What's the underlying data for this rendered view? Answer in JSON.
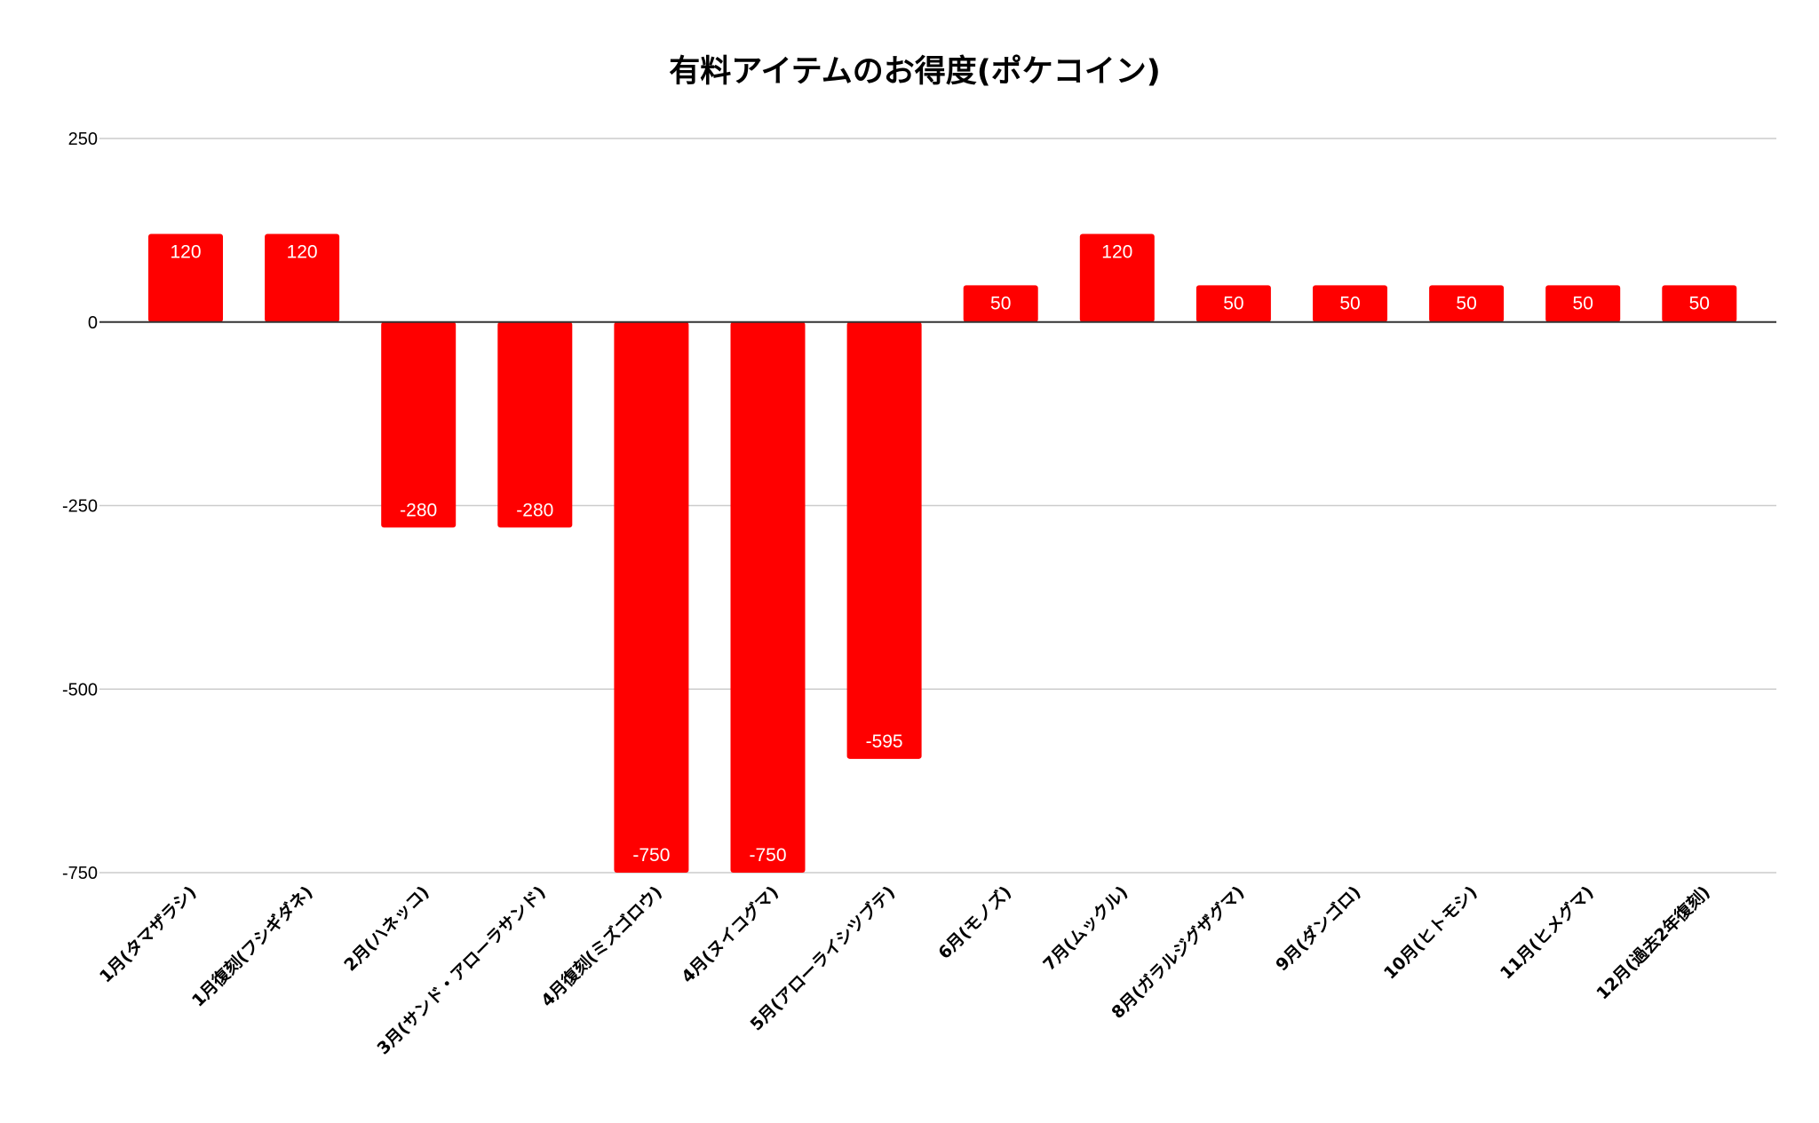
{
  "chart_data": {
    "type": "bar",
    "title": "有料アイテムのお得度(ポケコイン)",
    "xlabel": "",
    "ylabel": "",
    "ylim": [
      -750,
      250
    ],
    "yticks": [
      250,
      0,
      -250,
      -500,
      -750
    ],
    "ytick_labels": [
      "250",
      "0",
      "-250",
      "-500",
      "-750"
    ],
    "grid": true,
    "legend": "none",
    "categories": [
      "1月(タマザラシ)",
      "1月復刻(フシギダネ)",
      "2月(ハネッコ)",
      "3月(サンド・アローラサンド)",
      "4月復刻(ミズゴロウ)",
      "4月(ヌイコグマ)",
      "5月(アローライシツブテ)",
      "6月(モノズ)",
      "7月(ムックル)",
      "8月(ガラルジグザグマ)",
      "9月(ダンゴロ)",
      "10月(ヒトモシ)",
      "11月(ヒメグマ)",
      "12月(過去2年復刻)"
    ],
    "values": [
      120,
      120,
      -280,
      -280,
      -750,
      -750,
      -595,
      50,
      120,
      50,
      50,
      50,
      50,
      50
    ],
    "data_labels": [
      "120",
      "120",
      "-280",
      "-280",
      "-750",
      "-750",
      "-595",
      "50",
      "120",
      "50",
      "50",
      "50",
      "50",
      "50"
    ],
    "colors": {
      "bar": "#ff0000",
      "grid": "#cccccc",
      "baseline": "#333333",
      "data_label": "#ffffff"
    }
  }
}
